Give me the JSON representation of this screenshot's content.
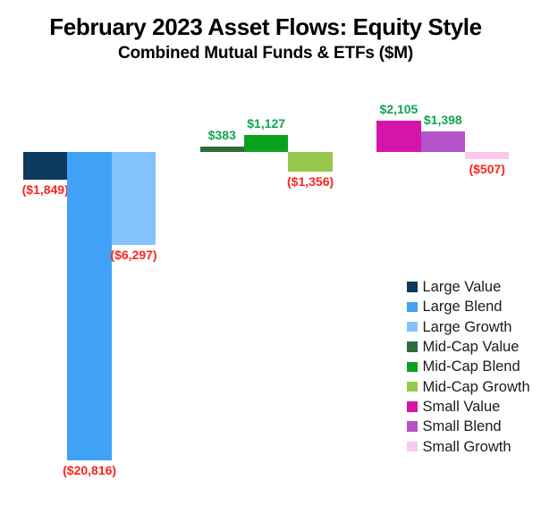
{
  "chart_data": {
    "type": "bar",
    "title": "February 2023 Asset Flows: Equity Style",
    "subtitle": "Combined Mutual Funds & ETFs ($M)",
    "categories": [
      "Large Value",
      "Large Blend",
      "Large Growth",
      "Mid-Cap Value",
      "Mid-Cap Blend",
      "Mid-Cap Growth",
      "Small Value",
      "Small Blend",
      "Small Growth"
    ],
    "values": [
      -1849,
      -20816,
      -6297,
      383,
      1127,
      -1356,
      2105,
      1398,
      -507
    ],
    "display_labels": [
      "($1,849)",
      "($20,816)",
      "($6,297)",
      "$383",
      "$1,127",
      "($1,356)",
      "$2,105",
      "$1,398",
      "($507)"
    ],
    "bar_colors": [
      "#0e3a5f",
      "#3fa2f7",
      "#83c3fd",
      "#2f6b3b",
      "#09a21e",
      "#95c84d",
      "#d714a9",
      "#b454c8",
      "#fac7ee"
    ],
    "groups": [
      "Large",
      "Mid-Cap",
      "Small"
    ],
    "group_size": 3,
    "label_colors": {
      "positive": "#12a552",
      "negative": "#fa241e"
    },
    "legend_entries": [
      "Large Value",
      "Large Blend",
      "Large Growth",
      "Mid-Cap Value",
      "Mid-Cap Blend",
      "Mid-Cap Growth",
      "Small Value",
      "Small Blend",
      "Small Growth"
    ],
    "xlabel": "",
    "ylabel": "",
    "ylim": [
      -20816,
      2105
    ],
    "grid": false,
    "legend_position": "right"
  }
}
